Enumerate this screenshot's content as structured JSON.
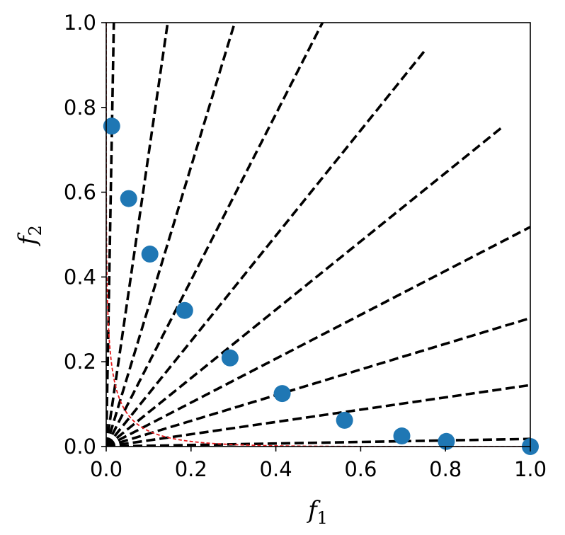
{
  "chart_data": {
    "type": "scatter",
    "xlabel": "f",
    "xlabel_sub": "1",
    "ylabel": "f",
    "ylabel_sub": "2",
    "xlim": [
      0,
      1
    ],
    "ylim": [
      0,
      1
    ],
    "xticks": [
      "0.0",
      "0.2",
      "0.4",
      "0.6",
      "0.8",
      "1.0"
    ],
    "yticks": [
      "0.0",
      "0.2",
      "0.4",
      "0.6",
      "0.8",
      "1.0"
    ],
    "grid": false,
    "points_color": "#1f77b4",
    "front_color": "#e41a1c",
    "ray_color": "#000000",
    "points": [
      {
        "x": 0.013,
        "y": 0.756
      },
      {
        "x": 0.053,
        "y": 0.585
      },
      {
        "x": 0.103,
        "y": 0.454
      },
      {
        "x": 0.185,
        "y": 0.321
      },
      {
        "x": 0.292,
        "y": 0.209
      },
      {
        "x": 0.415,
        "y": 0.125
      },
      {
        "x": 0.562,
        "y": 0.062
      },
      {
        "x": 0.697,
        "y": 0.025
      },
      {
        "x": 0.802,
        "y": 0.012
      },
      {
        "x": 1.0,
        "y": 0.0
      }
    ],
    "rays": [
      {
        "x": 0.018,
        "y": 1.0
      },
      {
        "x": 0.145,
        "y": 1.0
      },
      {
        "x": 0.303,
        "y": 1.0
      },
      {
        "x": 0.51,
        "y": 1.0
      },
      {
        "x": 0.752,
        "y": 0.935
      },
      {
        "x": 0.932,
        "y": 0.752
      },
      {
        "x": 1.0,
        "y": 0.518
      },
      {
        "x": 1.0,
        "y": 0.303
      },
      {
        "x": 1.0,
        "y": 0.145
      },
      {
        "x": 1.0,
        "y": 0.018
      }
    ],
    "front_curve": {
      "type": "power",
      "exponent": 0.25
    }
  }
}
